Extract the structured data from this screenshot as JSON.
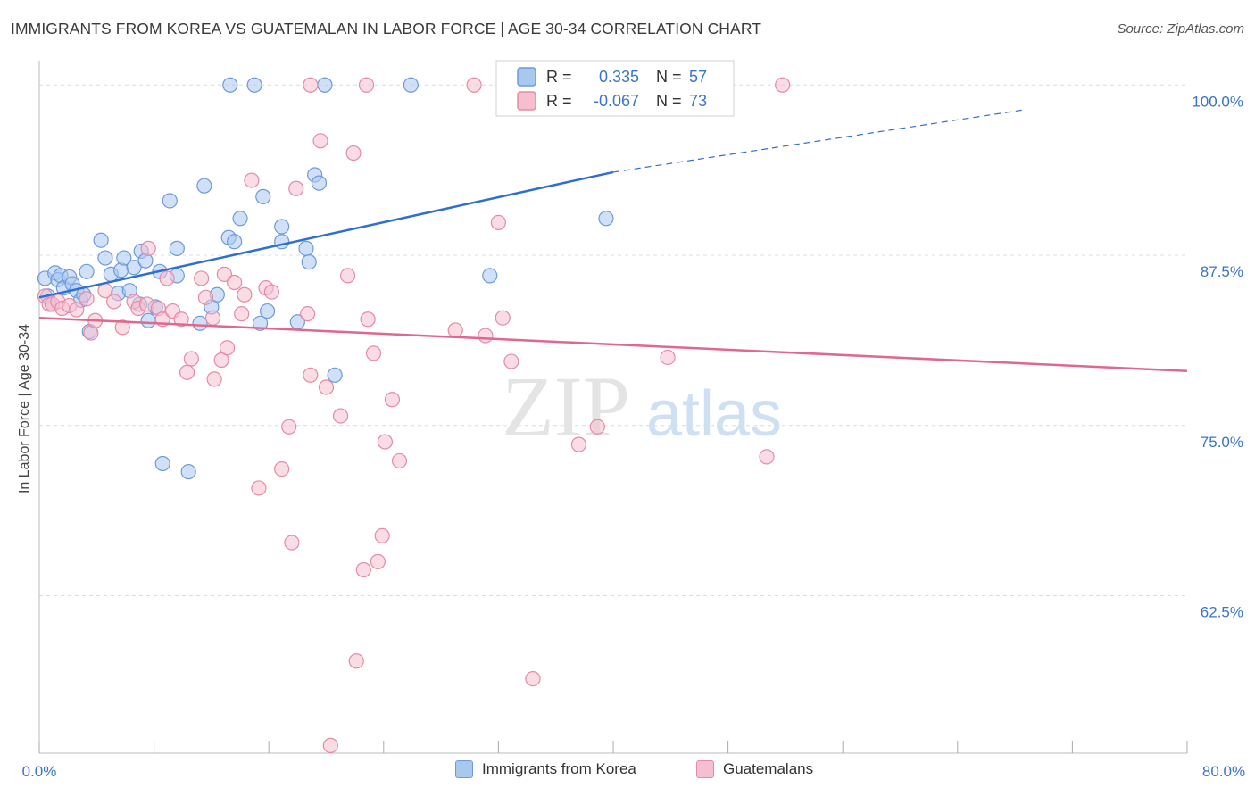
{
  "header": {
    "title": "IMMIGRANTS FROM KOREA VS GUATEMALAN IN LABOR FORCE | AGE 30-34 CORRELATION CHART",
    "source": "Source: ZipAtlas.com"
  },
  "watermark": {
    "zip": "ZIP",
    "atlas": "atlas"
  },
  "colors": {
    "blue_fill": "#a9c8f0",
    "blue_stroke": "#6d9ad9",
    "blue_line": "#2f6fd1",
    "pink_fill": "#f6bfd0",
    "pink_stroke": "#e58aa8",
    "pink_line": "#e0678f",
    "axis_value": "#3a74c9",
    "grid": "#dcdcdc"
  },
  "chart_data": {
    "type": "scatter",
    "title": "IMMIGRANTS FROM KOREA VS GUATEMALAN IN LABOR FORCE | AGE 30-34 CORRELATION CHART",
    "xlabel": "",
    "ylabel": "In Labor Force | Age 30-34",
    "xlim": [
      0,
      80
    ],
    "ylim": [
      51,
      101
    ],
    "x_tick_labels": [
      "0.0%",
      "80.0%"
    ],
    "y_ticks": [
      62.5,
      75.0,
      87.5,
      100.0
    ],
    "y_tick_labels": [
      "62.5%",
      "75.0%",
      "87.5%",
      "100.0%"
    ],
    "grid": true,
    "legend_position": "top-center",
    "legend": [
      {
        "r_label": "R =",
        "r": "0.335",
        "n_label": "N =",
        "n": "57"
      },
      {
        "r_label": "R =",
        "r": "-0.067",
        "n_label": "N =",
        "n": "73"
      }
    ],
    "series": [
      {
        "name": "Immigrants from Korea",
        "color": "#a9c8f0",
        "trend": {
          "x0": 0,
          "y0": 84.4,
          "x1": 40,
          "y1": 93.6,
          "dash_to_x": 80,
          "dash_to_y": 100
        },
        "points": [
          [
            0.4,
            85.8
          ],
          [
            0.6,
            84.5
          ],
          [
            0.9,
            83.9
          ],
          [
            1.1,
            86.2
          ],
          [
            1.3,
            85.7
          ],
          [
            1.5,
            86.0
          ],
          [
            1.7,
            85.1
          ],
          [
            2.1,
            85.9
          ],
          [
            2.3,
            85.4
          ],
          [
            2.6,
            84.9
          ],
          [
            2.9,
            84.2
          ],
          [
            3.1,
            84.6
          ],
          [
            3.3,
            86.3
          ],
          [
            3.5,
            81.9
          ],
          [
            4.3,
            88.6
          ],
          [
            4.6,
            87.3
          ],
          [
            5.0,
            86.1
          ],
          [
            5.5,
            84.7
          ],
          [
            5.7,
            86.4
          ],
          [
            5.9,
            87.3
          ],
          [
            6.3,
            84.9
          ],
          [
            6.6,
            86.6
          ],
          [
            7.0,
            83.9
          ],
          [
            7.1,
            87.8
          ],
          [
            7.4,
            87.1
          ],
          [
            7.6,
            82.7
          ],
          [
            8.1,
            83.7
          ],
          [
            8.4,
            86.3
          ],
          [
            8.6,
            72.2
          ],
          [
            9.1,
            91.5
          ],
          [
            9.6,
            88.0
          ],
          [
            9.6,
            86.0
          ],
          [
            10.4,
            71.6
          ],
          [
            11.2,
            82.5
          ],
          [
            11.5,
            92.6
          ],
          [
            12.0,
            83.7
          ],
          [
            12.4,
            84.6
          ],
          [
            13.2,
            88.8
          ],
          [
            13.6,
            88.5
          ],
          [
            14.0,
            90.2
          ],
          [
            15.4,
            82.5
          ],
          [
            15.6,
            91.8
          ],
          [
            15.9,
            83.4
          ],
          [
            16.9,
            89.6
          ],
          [
            16.9,
            88.5
          ],
          [
            18.0,
            82.6
          ],
          [
            18.6,
            88.0
          ],
          [
            18.8,
            87.0
          ],
          [
            19.2,
            93.4
          ],
          [
            19.5,
            92.8
          ],
          [
            20.6,
            78.7
          ],
          [
            13.3,
            100
          ],
          [
            15.0,
            100
          ],
          [
            19.9,
            100
          ],
          [
            25.9,
            100
          ],
          [
            31.4,
            86.0
          ],
          [
            39.5,
            90.2
          ]
        ]
      },
      {
        "name": "Guatemalans",
        "color": "#f6bfd0",
        "trend": {
          "x0": 0,
          "y0": 82.9,
          "x1": 80,
          "y1": 79.0
        },
        "points": [
          [
            0.4,
            84.5
          ],
          [
            0.7,
            83.9
          ],
          [
            0.9,
            83.9
          ],
          [
            1.3,
            84.1
          ],
          [
            1.6,
            83.6
          ],
          [
            2.1,
            83.8
          ],
          [
            2.6,
            83.5
          ],
          [
            3.3,
            84.3
          ],
          [
            3.6,
            81.8
          ],
          [
            3.9,
            82.7
          ],
          [
            4.6,
            84.9
          ],
          [
            5.2,
            84.1
          ],
          [
            5.8,
            82.2
          ],
          [
            6.6,
            84.1
          ],
          [
            6.9,
            83.6
          ],
          [
            7.5,
            83.9
          ],
          [
            7.6,
            88.0
          ],
          [
            8.3,
            83.6
          ],
          [
            8.6,
            82.8
          ],
          [
            8.9,
            85.8
          ],
          [
            9.3,
            83.4
          ],
          [
            9.9,
            82.8
          ],
          [
            10.3,
            78.9
          ],
          [
            10.6,
            79.9
          ],
          [
            11.3,
            85.8
          ],
          [
            11.6,
            84.4
          ],
          [
            12.1,
            82.9
          ],
          [
            12.2,
            78.4
          ],
          [
            12.7,
            79.8
          ],
          [
            12.9,
            86.1
          ],
          [
            13.1,
            80.7
          ],
          [
            13.6,
            85.5
          ],
          [
            14.1,
            83.2
          ],
          [
            14.3,
            84.6
          ],
          [
            14.8,
            93.0
          ],
          [
            15.3,
            70.4
          ],
          [
            15.8,
            85.1
          ],
          [
            16.2,
            84.8
          ],
          [
            16.9,
            71.8
          ],
          [
            17.4,
            74.9
          ],
          [
            17.6,
            66.4
          ],
          [
            17.9,
            92.4
          ],
          [
            18.7,
            83.2
          ],
          [
            18.9,
            78.7
          ],
          [
            19.6,
            95.9
          ],
          [
            20.0,
            77.8
          ],
          [
            20.3,
            51.5
          ],
          [
            21.0,
            75.7
          ],
          [
            21.5,
            86.0
          ],
          [
            21.9,
            95.0
          ],
          [
            22.1,
            57.7
          ],
          [
            22.6,
            64.4
          ],
          [
            22.9,
            82.8
          ],
          [
            23.3,
            80.3
          ],
          [
            23.6,
            65.0
          ],
          [
            23.9,
            66.9
          ],
          [
            24.1,
            73.8
          ],
          [
            24.6,
            76.9
          ],
          [
            25.1,
            72.4
          ],
          [
            29.0,
            82.0
          ],
          [
            31.1,
            81.6
          ],
          [
            32.0,
            89.9
          ],
          [
            32.3,
            82.9
          ],
          [
            32.9,
            79.7
          ],
          [
            34.4,
            56.4
          ],
          [
            37.6,
            73.6
          ],
          [
            38.9,
            74.9
          ],
          [
            43.8,
            80.0
          ],
          [
            50.7,
            72.7
          ],
          [
            18.9,
            100
          ],
          [
            22.8,
            100
          ],
          [
            30.3,
            100
          ],
          [
            51.8,
            100
          ]
        ]
      }
    ]
  },
  "legend_bottom": [
    {
      "label": "Immigrants from Korea"
    },
    {
      "label": "Guatemalans"
    }
  ]
}
